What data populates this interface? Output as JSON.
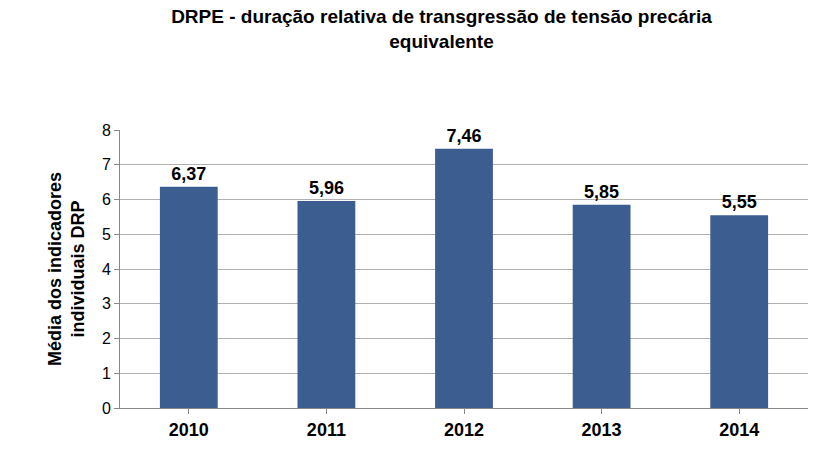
{
  "chart_data": {
    "type": "bar",
    "title": "DRPE - duração relativa de transgressão de tensão precária equivalente",
    "y_label": "Média dos indicadores individuais DRP",
    "categories": [
      "2010",
      "2011",
      "2012",
      "2013",
      "2014"
    ],
    "values": [
      6.37,
      5.96,
      7.46,
      5.85,
      5.55
    ],
    "value_labels": [
      "6,37",
      "5,96",
      "7,46",
      "5,85",
      "5,55"
    ],
    "color": "#3b5d8f",
    "ylim": [
      0,
      8
    ],
    "yticks": [
      0,
      1,
      2,
      3,
      4,
      5,
      6,
      7,
      8
    ],
    "grid": true,
    "data_labels": true
  }
}
